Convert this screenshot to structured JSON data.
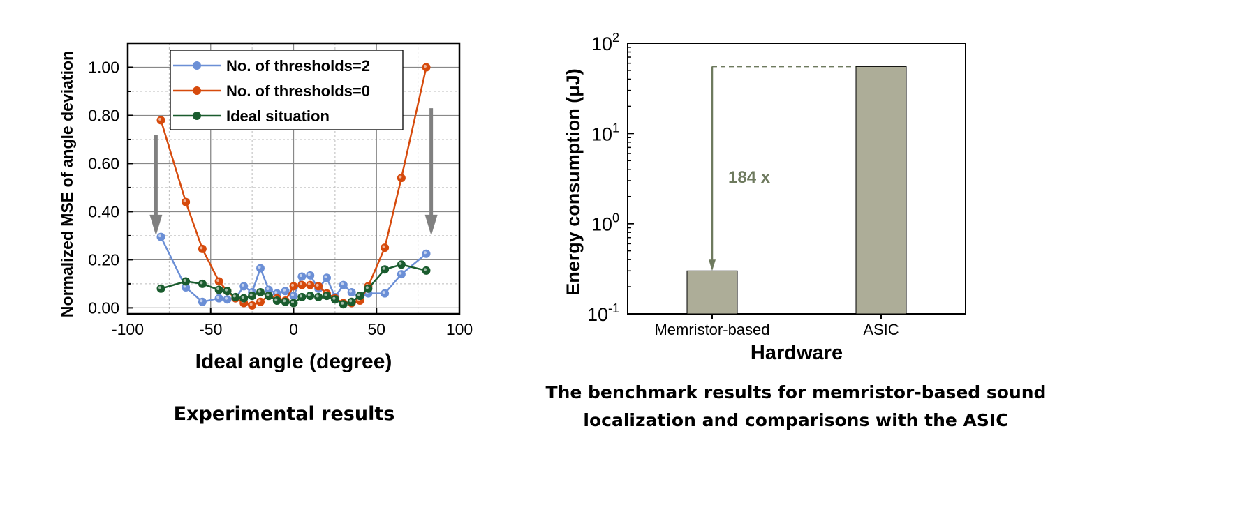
{
  "chart_data": [
    {
      "type": "line",
      "xlabel": "Ideal angle (degree)",
      "ylabel": "Normalized MSE of angle deviation",
      "xlim": [
        -100,
        100
      ],
      "ylim": [
        -0.025,
        1.1
      ],
      "xticks": [
        -100,
        -50,
        0,
        50,
        100
      ],
      "xtick_labels": [
        "-100",
        "-50",
        "0",
        "50",
        "100"
      ],
      "yticks": [
        0,
        0.2,
        0.4,
        0.6,
        0.8,
        1.0
      ],
      "ytick_labels": [
        "0.00",
        "0.20",
        "0.40",
        "0.60",
        "0.80",
        "1.00"
      ],
      "grid": true,
      "legend_position": "top-center",
      "x": [
        -80,
        -65,
        -55,
        -45,
        -40,
        -35,
        -30,
        -25,
        -20,
        -15,
        -10,
        -5,
        0,
        5,
        10,
        15,
        20,
        25,
        30,
        35,
        40,
        45,
        55,
        65,
        80
      ],
      "series": [
        {
          "name": "No. of thresholds=2",
          "color": "#6b8fd6",
          "values": [
            0.295,
            0.085,
            0.025,
            0.04,
            0.035,
            0.04,
            0.09,
            0.065,
            0.165,
            0.075,
            0.06,
            0.07,
            0.05,
            0.13,
            0.135,
            0.08,
            0.125,
            0.045,
            0.095,
            0.065,
            0.04,
            0.06,
            0.06,
            0.14,
            0.225
          ]
        },
        {
          "name": "No. of thresholds=0",
          "color": "#d64a0c",
          "values": [
            0.78,
            0.44,
            0.245,
            0.11,
            0.07,
            0.04,
            0.02,
            0.01,
            0.025,
            0.05,
            0.04,
            0.03,
            0.09,
            0.095,
            0.095,
            0.09,
            0.06,
            0.04,
            0.02,
            0.02,
            0.03,
            0.09,
            0.25,
            0.54,
            1.0
          ]
        },
        {
          "name": "Ideal situation",
          "color": "#1a5c2e",
          "values": [
            0.08,
            0.11,
            0.1,
            0.075,
            0.07,
            0.045,
            0.04,
            0.05,
            0.065,
            0.05,
            0.03,
            0.025,
            0.02,
            0.045,
            0.05,
            0.045,
            0.05,
            0.035,
            0.015,
            0.025,
            0.05,
            0.08,
            0.16,
            0.18,
            0.155
          ]
        }
      ],
      "annotations": [
        {
          "type": "arrow",
          "x": -83,
          "from": 0.72,
          "to": 0.3,
          "color": "#808080"
        },
        {
          "type": "arrow",
          "x": 83,
          "from": 0.83,
          "to": 0.3,
          "color": "#808080"
        }
      ],
      "caption": "Experimental results"
    },
    {
      "type": "bar",
      "xlabel": "Hardware",
      "ylabel": "Energy consumption (μJ)",
      "yscale": "log",
      "ylim": [
        0.1,
        100
      ],
      "ytick_base": "10",
      "ytick_exponents": [
        "-1",
        "0",
        "1",
        "2"
      ],
      "categories": [
        "Memristor-based",
        "ASIC"
      ],
      "values": [
        0.3,
        55.2
      ],
      "bar_color": "#adad98",
      "annotation": {
        "text": "184 x",
        "color": "#6e7a5e"
      },
      "caption_lines": [
        "The benchmark results for memristor-based sound",
        "localization and comparisons with the ASIC"
      ]
    }
  ]
}
